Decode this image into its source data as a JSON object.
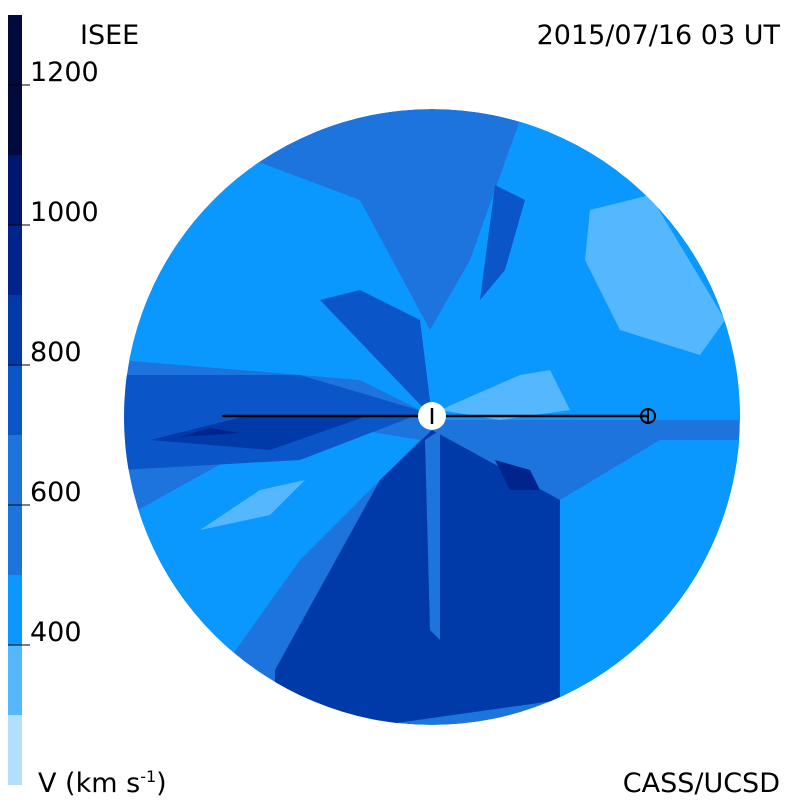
{
  "header": {
    "source": "ISEE",
    "timestamp": "2015/07/16 03 UT"
  },
  "colorbar": {
    "range": [
      200,
      1300
    ],
    "ticks": [
      400,
      600,
      800,
      1000,
      1200
    ],
    "label": {
      "text": "V (km s",
      "superscript": "-1",
      "close": ")"
    }
  },
  "footer": {
    "credit": "CASS/UCSD"
  }
}
